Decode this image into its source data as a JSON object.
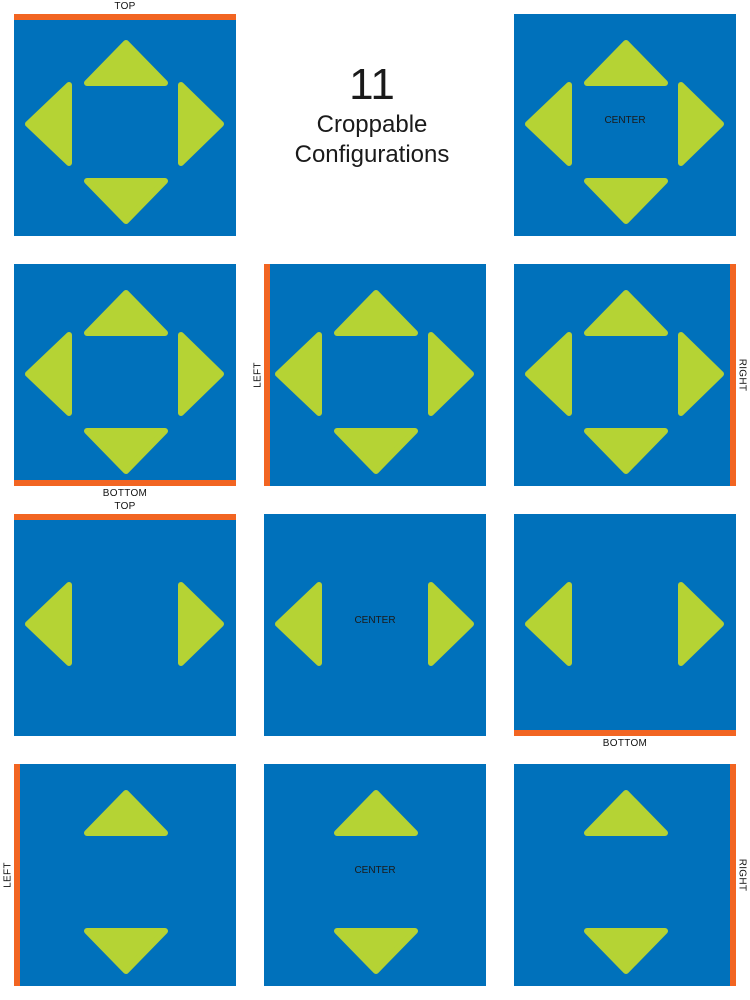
{
  "heading": {
    "number": "11",
    "line1": "Croppable",
    "line2": "Configurations"
  },
  "labels": {
    "top": "TOP",
    "bottom": "BOTTOM",
    "left": "LEFT",
    "right": "RIGHT",
    "center": "CENTER"
  },
  "colors": {
    "tile": "#0071BB",
    "arrow": "#B5D334",
    "edge": "#F26522"
  },
  "configurations": [
    {
      "id": "four-arrows-top",
      "arrows": [
        "up",
        "down",
        "left",
        "right"
      ],
      "edge": "top",
      "center": false
    },
    {
      "id": "four-arrows-center",
      "arrows": [
        "up",
        "down",
        "left",
        "right"
      ],
      "edge": "none",
      "center": true
    },
    {
      "id": "four-arrows-bottom",
      "arrows": [
        "up",
        "down",
        "left",
        "right"
      ],
      "edge": "bottom",
      "center": false
    },
    {
      "id": "four-arrows-left",
      "arrows": [
        "up",
        "down",
        "left",
        "right"
      ],
      "edge": "left",
      "center": false
    },
    {
      "id": "four-arrows-right",
      "arrows": [
        "up",
        "down",
        "left",
        "right"
      ],
      "edge": "right",
      "center": false
    },
    {
      "id": "horizontal-arrows-top",
      "arrows": [
        "left",
        "right"
      ],
      "edge": "top",
      "center": false
    },
    {
      "id": "horizontal-arrows-center",
      "arrows": [
        "left",
        "right"
      ],
      "edge": "none",
      "center": true
    },
    {
      "id": "horizontal-arrows-bottom",
      "arrows": [
        "left",
        "right"
      ],
      "edge": "bottom",
      "center": false
    },
    {
      "id": "vertical-arrows-left",
      "arrows": [
        "up",
        "down"
      ],
      "edge": "left",
      "center": false
    },
    {
      "id": "vertical-arrows-center",
      "arrows": [
        "up",
        "down"
      ],
      "edge": "none",
      "center": true
    },
    {
      "id": "vertical-arrows-right",
      "arrows": [
        "up",
        "down"
      ],
      "edge": "right",
      "center": false
    }
  ]
}
